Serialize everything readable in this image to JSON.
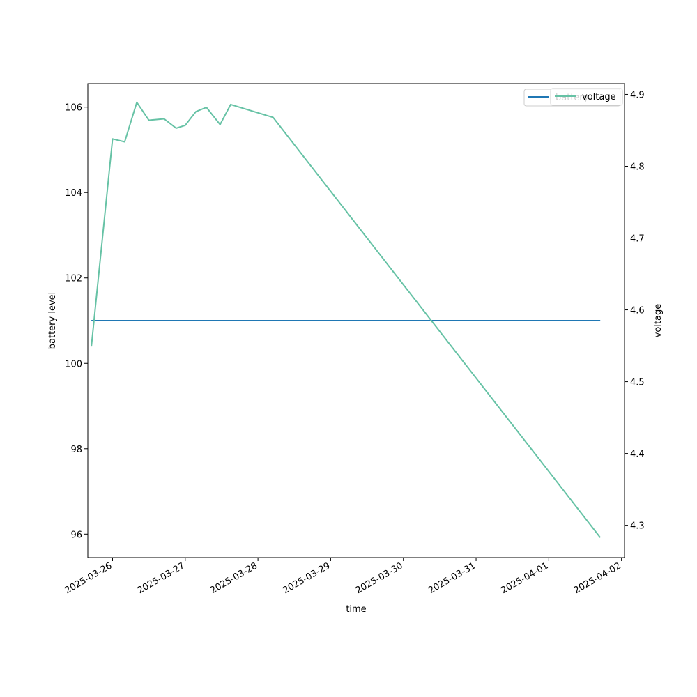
{
  "chart_data": {
    "type": "line",
    "xlabel": "time",
    "ylabel_left": "battery level",
    "ylabel_right": "voltage",
    "xlim": [
      "2025-03-25T15:50",
      "2025-04-02T01:00"
    ],
    "ylim_left": [
      95.45,
      106.55
    ],
    "ylim_right": [
      4.255,
      4.915
    ],
    "x_ticks": [
      "2025-03-26",
      "2025-03-27",
      "2025-03-28",
      "2025-03-29",
      "2025-03-30",
      "2025-03-31",
      "2025-04-01",
      "2025-04-02"
    ],
    "y_ticks_left": [
      96,
      98,
      100,
      102,
      104,
      106
    ],
    "y_ticks_right": [
      4.3,
      4.4,
      4.5,
      4.6,
      4.7,
      4.8,
      4.9
    ],
    "y_ticks_right_labels": [
      "4.3",
      "4.4",
      "4.5",
      "4.6",
      "4.7",
      "4.8",
      "4.9"
    ],
    "grid": false,
    "legend_placement": "upper right",
    "series": [
      {
        "name": "battery",
        "axis": "left",
        "color": "#1f77b4",
        "points": [
          {
            "x": "2025-03-25T17:00",
            "y": 101
          },
          {
            "x": "2025-04-01T17:00",
            "y": 101
          }
        ]
      },
      {
        "name": "voltage",
        "axis": "right",
        "color": "#66c2a5",
        "points": [
          {
            "x": "2025-03-25T17:00",
            "y": 4.549
          },
          {
            "x": "2025-03-26T00:00",
            "y": 4.838
          },
          {
            "x": "2025-03-26T04:00",
            "y": 4.834
          },
          {
            "x": "2025-03-26T08:00",
            "y": 4.889
          },
          {
            "x": "2025-03-26T12:00",
            "y": 4.864
          },
          {
            "x": "2025-03-26T17:00",
            "y": 4.866
          },
          {
            "x": "2025-03-26T21:00",
            "y": 4.853
          },
          {
            "x": "2025-03-27T00:00",
            "y": 4.857
          },
          {
            "x": "2025-03-27T03:30",
            "y": 4.876
          },
          {
            "x": "2025-03-27T07:00",
            "y": 4.882
          },
          {
            "x": "2025-03-27T11:30",
            "y": 4.858
          },
          {
            "x": "2025-03-27T15:00",
            "y": 4.886
          },
          {
            "x": "2025-03-28T05:00",
            "y": 4.868
          },
          {
            "x": "2025-04-01T17:00",
            "y": 4.283
          }
        ]
      }
    ]
  }
}
